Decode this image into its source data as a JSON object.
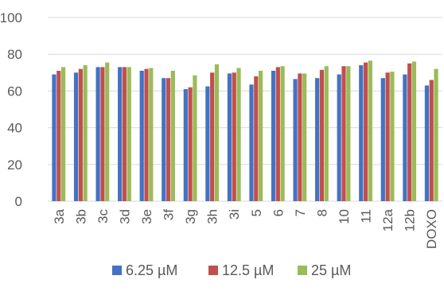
{
  "chart_data": {
    "type": "bar",
    "categories": [
      "3a",
      "3b",
      "3c",
      "3d",
      "3e",
      "3f",
      "3g",
      "3h",
      "3i",
      "5",
      "6",
      "7",
      "8",
      "10",
      "11",
      "12a",
      "12b",
      "DOXO"
    ],
    "series": [
      {
        "name": "6.25 µM",
        "color": "#4472C4",
        "values": [
          69,
          70,
          73,
          73,
          71,
          67,
          61,
          62.5,
          69.5,
          63.5,
          71,
          66.5,
          67,
          69,
          74,
          67,
          69,
          63
        ]
      },
      {
        "name": "12.5 µM",
        "color": "#C0504D",
        "values": [
          71,
          72,
          73,
          73,
          72,
          67,
          62,
          70,
          70,
          68,
          73,
          69.5,
          71.5,
          73.5,
          75.5,
          70,
          75,
          66
        ]
      },
      {
        "name": "25 µM",
        "color": "#9BBB59",
        "values": [
          73,
          74,
          75.5,
          73,
          72.5,
          71,
          68.5,
          74.5,
          72.5,
          71,
          73.5,
          69.5,
          73.5,
          73.5,
          76.5,
          70.5,
          76,
          72
        ]
      }
    ],
    "yticks": [
      0,
      20,
      40,
      60,
      80,
      100
    ],
    "ylim": [
      0,
      100
    ],
    "grid": true,
    "legend_position": "bottom"
  }
}
